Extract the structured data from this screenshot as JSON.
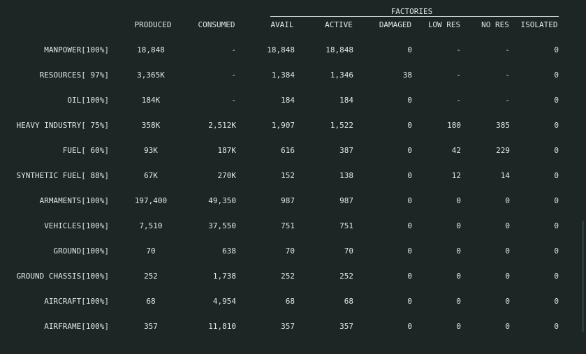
{
  "factories_header": "FACTORIES",
  "columns": [
    "PRODUCED",
    "CONSUMED",
    "AVAIL",
    "ACTIVE",
    "DAMAGED",
    "LOW RES",
    "NO RES",
    "ISOLATED"
  ],
  "rows": [
    {
      "label": "MANPOWER[100%]",
      "produced": "18,848",
      "consumed": "-",
      "avail": "18,848",
      "active": "18,848",
      "damaged": "0",
      "low_res": "-",
      "no_res": "-",
      "isolated": "0"
    },
    {
      "label": "RESOURCES[ 97%]",
      "produced": "3,365K",
      "consumed": "-",
      "avail": "1,384",
      "active": "1,346",
      "damaged": "38",
      "low_res": "-",
      "no_res": "-",
      "isolated": "0"
    },
    {
      "label": "OIL[100%]",
      "produced": "184K",
      "consumed": "-",
      "avail": "184",
      "active": "184",
      "damaged": "0",
      "low_res": "-",
      "no_res": "-",
      "isolated": "0"
    },
    {
      "label": "HEAVY INDUSTRY[ 75%]",
      "produced": "358K",
      "consumed": "2,512K",
      "avail": "1,907",
      "active": "1,522",
      "damaged": "0",
      "low_res": "180",
      "no_res": "385",
      "isolated": "0"
    },
    {
      "label": "FUEL[ 60%]",
      "produced": "93K",
      "consumed": "187K",
      "avail": "616",
      "active": "387",
      "damaged": "0",
      "low_res": "42",
      "no_res": "229",
      "isolated": "0"
    },
    {
      "label": "SYNTHETIC FUEL[ 88%]",
      "produced": "67K",
      "consumed": "270K",
      "avail": "152",
      "active": "138",
      "damaged": "0",
      "low_res": "12",
      "no_res": "14",
      "isolated": "0"
    },
    {
      "label": "ARMAMENTS[100%]",
      "produced": "197,400",
      "consumed": "49,350",
      "avail": "987",
      "active": "987",
      "damaged": "0",
      "low_res": "0",
      "no_res": "0",
      "isolated": "0"
    },
    {
      "label": "VEHICLES[100%]",
      "produced": "7,510",
      "consumed": "37,550",
      "avail": "751",
      "active": "751",
      "damaged": "0",
      "low_res": "0",
      "no_res": "0",
      "isolated": "0"
    },
    {
      "label": "GROUND[100%]",
      "produced": "70",
      "consumed": "638",
      "avail": "70",
      "active": "70",
      "damaged": "0",
      "low_res": "0",
      "no_res": "0",
      "isolated": "0"
    },
    {
      "label": "GROUND CHASSIS[100%]",
      "produced": "252",
      "consumed": "1,738",
      "avail": "252",
      "active": "252",
      "damaged": "0",
      "low_res": "0",
      "no_res": "0",
      "isolated": "0"
    },
    {
      "label": "AIRCRAFT[100%]",
      "produced": "68",
      "consumed": "4,954",
      "avail": "68",
      "active": "68",
      "damaged": "0",
      "low_res": "0",
      "no_res": "0",
      "isolated": "0"
    },
    {
      "label": "AIRFRAME[100%]",
      "produced": "357",
      "consumed": "11,810",
      "avail": "357",
      "active": "357",
      "damaged": "0",
      "low_res": "0",
      "no_res": "0",
      "isolated": "0"
    }
  ]
}
